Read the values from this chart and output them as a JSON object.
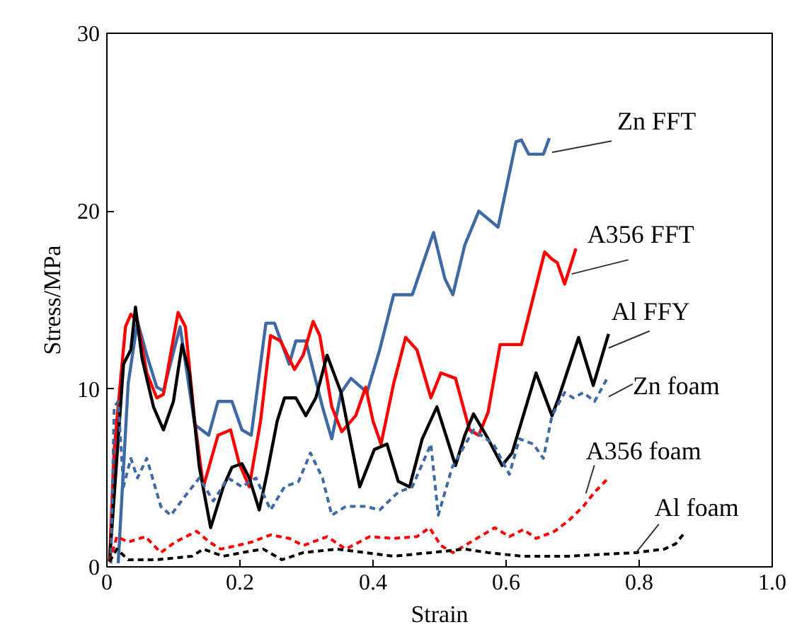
{
  "chart_data": {
    "type": "line",
    "xlabel": "Strain",
    "ylabel": "Stress/MPa",
    "xlim": [
      0,
      1.0
    ],
    "ylim": [
      0,
      30
    ],
    "xticks": [
      0,
      0.2,
      0.4,
      0.6,
      0.8,
      {
        "value": 1.0,
        "label": "1.0"
      }
    ],
    "yticks": [
      0,
      10,
      20,
      30
    ],
    "grid": false,
    "marker": "none",
    "series": [
      {
        "name": "Zn FFT",
        "color": "#3d6aa5",
        "line_style": "solid",
        "x": [
          0.017,
          0.032,
          0.046,
          0.06,
          0.075,
          0.085,
          0.11,
          0.132,
          0.153,
          0.167,
          0.188,
          0.203,
          0.217,
          0.239,
          0.252,
          0.274,
          0.284,
          0.299,
          0.324,
          0.338,
          0.352,
          0.367,
          0.391,
          0.41,
          0.431,
          0.459,
          0.491,
          0.508,
          0.52,
          0.538,
          0.559,
          0.588,
          0.615,
          0.623,
          0.634,
          0.656,
          0.665
        ],
        "values": [
          0.2,
          10.3,
          13.8,
          11.9,
          10.1,
          9.9,
          13.5,
          8.0,
          7.4,
          9.3,
          9.3,
          7.7,
          7.4,
          13.7,
          13.7,
          11.4,
          12.7,
          12.7,
          9.0,
          7.2,
          9.8,
          10.6,
          9.8,
          12.2,
          15.3,
          15.3,
          18.8,
          16.2,
          15.3,
          18.1,
          20.0,
          19.1,
          23.9,
          24.0,
          23.2,
          23.2,
          24.1
        ]
      },
      {
        "name": "A356 FFT",
        "color": "#ff0000",
        "line_style": "solid",
        "x": [
          0.004,
          0.011,
          0.028,
          0.036,
          0.046,
          0.06,
          0.075,
          0.085,
          0.107,
          0.118,
          0.132,
          0.145,
          0.167,
          0.186,
          0.199,
          0.214,
          0.231,
          0.246,
          0.261,
          0.282,
          0.295,
          0.31,
          0.32,
          0.338,
          0.353,
          0.374,
          0.389,
          0.4,
          0.412,
          0.431,
          0.449,
          0.466,
          0.487,
          0.502,
          0.524,
          0.545,
          0.559,
          0.573,
          0.591,
          0.623,
          0.658,
          0.669,
          0.677,
          0.688,
          0.705
        ],
        "values": [
          0.3,
          6.6,
          13.5,
          14.2,
          13.8,
          10.9,
          9.5,
          9.7,
          14.3,
          13.5,
          8.2,
          4.5,
          7.4,
          7.7,
          5.8,
          4.5,
          8.2,
          13.0,
          12.7,
          11.1,
          11.9,
          13.8,
          13.0,
          9.0,
          7.6,
          8.5,
          10.1,
          8.2,
          6.9,
          10.3,
          12.9,
          12.2,
          9.5,
          10.9,
          10.6,
          7.7,
          7.4,
          8.7,
          12.5,
          12.5,
          17.7,
          17.3,
          17.1,
          15.9,
          17.9
        ]
      },
      {
        "name": "Al FFY",
        "color": "#000000",
        "line_style": "solid",
        "x": [
          0.004,
          0.025,
          0.036,
          0.043,
          0.053,
          0.07,
          0.085,
          0.1,
          0.113,
          0.124,
          0.139,
          0.156,
          0.175,
          0.188,
          0.203,
          0.214,
          0.229,
          0.241,
          0.256,
          0.267,
          0.284,
          0.299,
          0.314,
          0.331,
          0.352,
          0.38,
          0.402,
          0.421,
          0.438,
          0.455,
          0.474,
          0.496,
          0.524,
          0.538,
          0.551,
          0.57,
          0.594,
          0.609,
          0.645,
          0.669,
          0.679,
          0.709,
          0.731,
          0.754
        ],
        "values": [
          0.3,
          11.4,
          12.2,
          14.6,
          11.7,
          9.0,
          7.7,
          9.3,
          12.5,
          10.9,
          5.6,
          2.2,
          4.5,
          5.6,
          5.8,
          5.0,
          3.2,
          5.3,
          8.2,
          9.5,
          9.5,
          8.5,
          9.5,
          11.9,
          9.8,
          4.5,
          6.6,
          6.9,
          4.8,
          4.5,
          7.2,
          9.0,
          5.7,
          7.4,
          8.6,
          7.4,
          5.7,
          6.4,
          10.9,
          8.5,
          9.5,
          12.9,
          10.2,
          13.1
        ]
      },
      {
        "name": "Zn foam",
        "color": "#3d6aa5",
        "line_style": "dashed",
        "x": [
          0.006,
          0.011,
          0.017,
          0.025,
          0.036,
          0.046,
          0.06,
          0.081,
          0.096,
          0.118,
          0.139,
          0.16,
          0.182,
          0.203,
          0.224,
          0.246,
          0.267,
          0.288,
          0.306,
          0.324,
          0.338,
          0.359,
          0.389,
          0.41,
          0.438,
          0.459,
          0.487,
          0.498,
          0.519,
          0.551,
          0.581,
          0.605,
          0.62,
          0.641,
          0.656,
          0.669,
          0.688,
          0.701,
          0.716,
          0.733,
          0.752
        ],
        "values": [
          0.2,
          9.0,
          9.3,
          4.5,
          6.1,
          5.0,
          6.1,
          3.4,
          2.9,
          4.0,
          5.0,
          3.7,
          5.0,
          4.5,
          5.0,
          3.2,
          4.5,
          4.8,
          6.4,
          5.0,
          2.9,
          3.4,
          3.4,
          3.2,
          4.2,
          4.5,
          6.9,
          2.9,
          5.6,
          7.7,
          6.9,
          5.2,
          7.2,
          6.9,
          6.1,
          8.5,
          9.8,
          9.5,
          9.8,
          9.3,
          10.6
        ]
      },
      {
        "name": "A356 foam",
        "color": "#ff0000",
        "line_style": "dashed",
        "x": [
          0.004,
          0.015,
          0.032,
          0.058,
          0.081,
          0.103,
          0.135,
          0.154,
          0.171,
          0.196,
          0.218,
          0.246,
          0.274,
          0.295,
          0.331,
          0.359,
          0.395,
          0.431,
          0.466,
          0.485,
          0.502,
          0.52,
          0.538,
          0.583,
          0.605,
          0.626,
          0.645,
          0.673,
          0.694,
          0.716,
          0.733,
          0.754
        ],
        "values": [
          0.3,
          1.7,
          1.4,
          1.7,
          0.8,
          1.4,
          2.0,
          1.4,
          1.0,
          1.2,
          1.4,
          1.8,
          1.6,
          1.2,
          1.7,
          1.0,
          1.7,
          1.6,
          1.7,
          2.2,
          1.2,
          0.8,
          1.2,
          2.2,
          1.7,
          2.1,
          1.6,
          2.0,
          2.6,
          3.4,
          4.2,
          5.0
        ]
      },
      {
        "name": "Al foam",
        "color": "#000000",
        "line_style": "dashed",
        "x": [
          0.004,
          0.015,
          0.032,
          0.075,
          0.128,
          0.145,
          0.175,
          0.203,
          0.235,
          0.263,
          0.295,
          0.346,
          0.389,
          0.431,
          0.487,
          0.538,
          0.573,
          0.624,
          0.694,
          0.795,
          0.838,
          0.855,
          0.87
        ],
        "values": [
          0.3,
          1.0,
          0.4,
          0.4,
          0.6,
          1.0,
          0.6,
          0.8,
          1.0,
          0.4,
          0.8,
          1.0,
          0.8,
          0.6,
          0.8,
          1.0,
          0.8,
          0.6,
          0.6,
          0.8,
          1.0,
          1.3,
          2.0
        ]
      }
    ]
  }
}
